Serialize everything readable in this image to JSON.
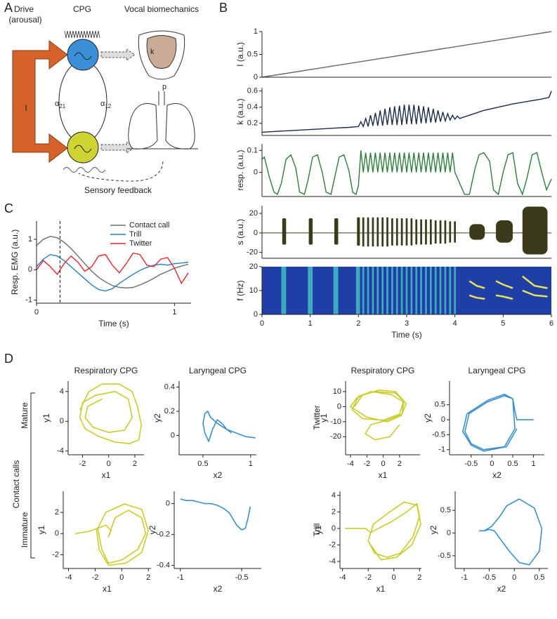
{
  "panels": {
    "a": "A",
    "b": "B",
    "c": "C",
    "d": "D"
  },
  "diagram": {
    "drive": "Drive",
    "arousal": "(arousal)",
    "cpg": "CPG",
    "biomechanics": "Vocal biomechanics",
    "drive_symbol": "I",
    "alpha_left": {
      "symbol": "α",
      "subscript": "21"
    },
    "alpha_right": {
      "symbol": "α",
      "subscript": "12"
    },
    "k": "k",
    "p": "p",
    "feedback": "Sensory feedback"
  },
  "row_labels": {
    "group": "Contact calls",
    "mature": "Mature",
    "immature": "Immature",
    "twitter": "Twitter",
    "trill": "Trill"
  },
  "chart_data": [
    {
      "type": "line",
      "ylabel": "I (a.u.)",
      "x": [
        0,
        6
      ],
      "values": [
        0,
        1
      ],
      "color": "#666666",
      "xlim": [
        0,
        6
      ],
      "ylim": [
        0,
        1
      ],
      "yticks": [
        0,
        0.5,
        1
      ]
    },
    {
      "type": "line",
      "ylabel": "k (a.u.)",
      "color": "#1c2b4a",
      "xlim": [
        0,
        6
      ],
      "ylim": [
        0.05,
        0.64
      ],
      "yticks": [
        0.2,
        0.4,
        0.6
      ],
      "x": [
        0,
        0.3,
        0.6,
        0.9,
        1.2,
        1.5,
        1.8,
        2.0,
        2.05,
        2.1,
        2.15,
        2.2,
        2.25,
        2.3,
        2.35,
        2.4,
        2.45,
        2.5,
        2.55,
        2.6,
        2.65,
        2.7,
        2.75,
        2.8,
        2.85,
        2.9,
        2.95,
        3.0,
        3.05,
        3.1,
        3.15,
        3.2,
        3.25,
        3.3,
        3.35,
        3.4,
        3.45,
        3.5,
        3.55,
        3.6,
        3.65,
        3.7,
        3.75,
        3.8,
        3.85,
        3.9,
        3.95,
        4.0,
        4.05,
        4.1,
        4.3,
        4.6,
        4.9,
        5.2,
        5.5,
        5.8,
        5.95,
        6
      ],
      "values": [
        0.09,
        0.1,
        0.11,
        0.12,
        0.13,
        0.14,
        0.15,
        0.16,
        0.22,
        0.16,
        0.26,
        0.16,
        0.3,
        0.17,
        0.33,
        0.17,
        0.36,
        0.17,
        0.38,
        0.18,
        0.4,
        0.18,
        0.41,
        0.18,
        0.42,
        0.18,
        0.43,
        0.19,
        0.43,
        0.19,
        0.43,
        0.19,
        0.42,
        0.2,
        0.41,
        0.2,
        0.4,
        0.21,
        0.38,
        0.21,
        0.36,
        0.22,
        0.34,
        0.23,
        0.32,
        0.24,
        0.3,
        0.25,
        0.29,
        0.26,
        0.3,
        0.36,
        0.4,
        0.44,
        0.47,
        0.5,
        0.52,
        0.6
      ]
    },
    {
      "type": "line",
      "ylabel": "resp. (a.u.)",
      "color": "#2e7d3a",
      "xlim": [
        0,
        6
      ],
      "ylim": [
        -0.11,
        0.13
      ],
      "yticks": [
        0,
        0.1
      ],
      "x": [
        0,
        0.05,
        0.15,
        0.25,
        0.32,
        0.4,
        0.5,
        0.6,
        0.7,
        0.78,
        0.88,
        0.95,
        1.05,
        1.15,
        1.25,
        1.33,
        1.43,
        1.5,
        1.6,
        1.7,
        1.8,
        1.88,
        1.95,
        2.0,
        2.05,
        2.1,
        2.15,
        2.2,
        2.25,
        2.3,
        2.35,
        2.4,
        2.45,
        2.5,
        2.55,
        2.6,
        2.65,
        2.7,
        2.75,
        2.8,
        2.85,
        2.9,
        2.95,
        3.0,
        3.05,
        3.1,
        3.15,
        3.2,
        3.25,
        3.3,
        3.35,
        3.4,
        3.45,
        3.5,
        3.55,
        3.6,
        3.65,
        3.7,
        3.75,
        3.8,
        3.85,
        3.9,
        3.95,
        4.0,
        4.1,
        4.2,
        4.3,
        4.42,
        4.5,
        4.6,
        4.72,
        4.8,
        4.9,
        5.0,
        5.1,
        5.2,
        5.3,
        5.4,
        5.5,
        5.6,
        5.7,
        5.8,
        5.9,
        6.0
      ],
      "values": [
        0.06,
        0.07,
        -0.02,
        -0.09,
        -0.1,
        -0.05,
        0.06,
        0.08,
        0.02,
        -0.09,
        -0.1,
        -0.04,
        0.07,
        0.08,
        0.0,
        -0.09,
        -0.1,
        -0.03,
        0.07,
        0.08,
        0.01,
        -0.09,
        -0.1,
        -0.06,
        0.1,
        0,
        0.09,
        0,
        0.09,
        0,
        0.09,
        0,
        0.09,
        0,
        0.09,
        0,
        0.09,
        0,
        0.09,
        0,
        0.09,
        0,
        0.09,
        0,
        0.09,
        0,
        0.09,
        0,
        0.09,
        0,
        0.09,
        0,
        0.09,
        0,
        0.09,
        0,
        0.09,
        0,
        0.09,
        0,
        0.09,
        0,
        0.09,
        0,
        -0.05,
        -0.1,
        -0.1,
        0.02,
        0.08,
        0.09,
        0.05,
        -0.08,
        -0.1,
        0.0,
        0.08,
        0.09,
        -0.05,
        -0.1,
        -0.02,
        0.08,
        0.09,
        0.0,
        -0.08,
        -0.03
      ]
    },
    {
      "type": "bursts",
      "ylabel": "s (a.u.)",
      "color": "#3b3b1c",
      "xlim": [
        0,
        6
      ],
      "ylim": [
        -26,
        28
      ],
      "yticks": [
        -20,
        0,
        20
      ],
      "starts": [
        0.42,
        0.97,
        1.5,
        1.97,
        2.08,
        2.18,
        2.28,
        2.38,
        2.48,
        2.58,
        2.68,
        2.78,
        2.88,
        2.98,
        3.08,
        3.18,
        3.28,
        3.38,
        3.48,
        3.58,
        3.68,
        3.78,
        3.88,
        3.98,
        4.3,
        4.85,
        5.4
      ],
      "ends": [
        0.5,
        1.05,
        1.58,
        2.03,
        2.12,
        2.22,
        2.32,
        2.42,
        2.52,
        2.62,
        2.72,
        2.82,
        2.92,
        3.02,
        3.12,
        3.22,
        3.32,
        3.42,
        3.52,
        3.62,
        3.72,
        3.82,
        3.92,
        4.02,
        4.62,
        5.2,
        5.92
      ],
      "upper": [
        15,
        15,
        15,
        16,
        16,
        16,
        16,
        16,
        16,
        16,
        15,
        15,
        15,
        15,
        15,
        14,
        14,
        14,
        14,
        13,
        13,
        13,
        12,
        12,
        9,
        13,
        27
      ],
      "lower": [
        -12,
        -12,
        -12,
        -13,
        -14,
        -14,
        -14,
        -14,
        -14,
        -14,
        -13,
        -13,
        -13,
        -13,
        -13,
        -12,
        -12,
        -12,
        -12,
        -11,
        -11,
        -11,
        -10,
        -10,
        -7,
        -10,
        -22
      ]
    },
    {
      "type": "spectrogram",
      "ylabel": "f (Hz)",
      "xlabel": "Time (s)",
      "xlim": [
        0,
        6
      ],
      "ylim": [
        0,
        20
      ],
      "yticks": [
        0,
        10,
        20
      ],
      "xticks": [
        0,
        1,
        2,
        3,
        4,
        5,
        6
      ],
      "background_color": "#1f3fa6",
      "stripe_color": "#45bcc4",
      "tone_color": "#e8e25a",
      "stripe_starts": [
        0.4,
        0.95,
        1.48,
        1.95,
        2.08,
        2.18,
        2.28,
        2.38,
        2.48,
        2.58,
        2.68,
        2.78,
        2.88,
        2.98,
        3.08,
        3.18,
        3.28,
        3.38,
        3.48,
        3.58,
        3.68,
        3.78,
        3.88,
        3.98
      ],
      "stripe_ends": [
        0.5,
        1.05,
        1.58,
        2.03,
        2.12,
        2.22,
        2.32,
        2.42,
        2.52,
        2.62,
        2.72,
        2.82,
        2.92,
        3.02,
        3.12,
        3.22,
        3.32,
        3.42,
        3.52,
        3.62,
        3.72,
        3.82,
        3.92,
        4.02
      ],
      "tones": [
        {
          "x": [
            4.3,
            4.45,
            4.62
          ],
          "values": [
            14,
            12,
            11
          ]
        },
        {
          "x": [
            4.3,
            4.45,
            4.62
          ],
          "values": [
            8,
            7,
            6.5
          ]
        },
        {
          "x": [
            4.85,
            5.0,
            5.2
          ],
          "values": [
            14,
            12.5,
            11
          ]
        },
        {
          "x": [
            4.85,
            5.0,
            5.2
          ],
          "values": [
            8,
            7.5,
            6.5
          ]
        },
        {
          "x": [
            5.4,
            5.65,
            5.92
          ],
          "values": [
            16,
            12,
            11
          ]
        },
        {
          "x": [
            5.4,
            5.65,
            5.92
          ],
          "values": [
            10,
            8,
            7.5
          ]
        }
      ]
    },
    {
      "type": "line",
      "ylabel": "Resp. EMG (a.u.)",
      "xlabel": "Time (s)",
      "xlim": [
        0,
        1.12
      ],
      "ylim": [
        -1.1,
        1.6
      ],
      "xticks": [
        0,
        1
      ],
      "yticks": [
        -1,
        0,
        1
      ],
      "legend": "top-right",
      "vline": 0.17,
      "x": [
        0,
        0.05,
        0.1,
        0.15,
        0.2,
        0.25,
        0.3,
        0.35,
        0.4,
        0.45,
        0.5,
        0.55,
        0.6,
        0.65,
        0.7,
        0.75,
        0.8,
        0.85,
        0.9,
        0.95,
        1.0,
        1.05,
        1.1
      ],
      "series": [
        {
          "name": "Contact call",
          "color": "#6e6e6e",
          "values": [
            0.8,
            1.0,
            1.1,
            1.05,
            0.9,
            0.7,
            0.45,
            0.2,
            -0.05,
            -0.25,
            -0.4,
            -0.52,
            -0.58,
            -0.6,
            -0.58,
            -0.5,
            -0.4,
            -0.28,
            -0.15,
            -0.05,
            0.05,
            0.12,
            0.18
          ]
        },
        {
          "name": "Trill",
          "color": "#2a7fc0",
          "values": [
            0.1,
            0.35,
            0.5,
            0.45,
            0.3,
            0.1,
            -0.1,
            -0.3,
            -0.5,
            -0.65,
            -0.7,
            -0.62,
            -0.45,
            -0.3,
            -0.15,
            -0.02,
            0.08,
            0.15,
            0.18,
            0.15,
            0.2,
            0.22,
            0.25
          ]
        },
        {
          "name": "Twitter",
          "color": "#e3262d",
          "values": [
            0.0,
            0.3,
            0.1,
            -0.15,
            0.2,
            0.45,
            0.25,
            -0.05,
            0.1,
            0.45,
            0.5,
            0.15,
            -0.1,
            0.2,
            0.55,
            0.5,
            0.15,
            0.1,
            0.35,
            0.4,
            0.05,
            -0.45,
            -0.1
          ]
        }
      ]
    },
    {
      "type": "trajectory",
      "title": "Respiratory CPG",
      "xlabel": "x1",
      "ylabel": "y1",
      "color": "#c9cc2c",
      "xlim": [
        -3.1,
        2.7
      ],
      "ylim": [
        -4.5,
        5.4
      ],
      "xticks": [
        -2,
        0,
        2
      ],
      "yticks": [
        -4,
        0,
        4
      ],
      "x": [
        -2.2,
        -1.8,
        -1.5,
        -0.5,
        0.8,
        1.8,
        2.2,
        2.5,
        2.3,
        1.6,
        0.5,
        -0.8,
        -1.8,
        -2.2,
        -2.0,
        -1.0,
        0.5,
        1.5,
        1.8,
        1.2,
        0,
        -1.2,
        -1.8,
        -1.6,
        -0.5
      ],
      "y": [
        1.5,
        3,
        4,
        5,
        5,
        4,
        2,
        -0.5,
        -2.5,
        -3,
        -2.8,
        -2,
        -1,
        0.5,
        2.5,
        3.5,
        4,
        3,
        0.5,
        -1.2,
        -1.5,
        -0.8,
        0.5,
        2,
        3
      ]
    },
    {
      "type": "trajectory",
      "title": "Laryngeal CPG",
      "xlabel": "x2",
      "ylabel": "y2",
      "color": "#3a8fcc",
      "xlim": [
        0.25,
        1.06
      ],
      "ylim": [
        -0.16,
        0.45
      ],
      "xticks": [
        0.5,
        1
      ],
      "yticks": [
        0,
        0.2,
        0.4
      ],
      "x": [
        1.05,
        0.95,
        0.85,
        0.75,
        0.65,
        0.58,
        0.55,
        0.52,
        0.5,
        0.52,
        0.56,
        0.6,
        0.65,
        0.7,
        0.75,
        0.8
      ],
      "y": [
        -0.02,
        -0.01,
        0.02,
        0.05,
        0.1,
        0.15,
        0.2,
        0.18,
        0.1,
        0.02,
        -0.05,
        0.05,
        0.13,
        0.1,
        0.05,
        0.02
      ]
    },
    {
      "type": "trajectory",
      "title": "Respiratory CPG",
      "xlabel": "x1",
      "ylabel": "y1",
      "color": "#c9cc2c",
      "xlim": [
        -4.6,
        4.5
      ],
      "ylim": [
        -32,
        17
      ],
      "xticks": [
        -4,
        -2,
        0,
        2
      ],
      "yticks": [
        -20,
        -10,
        0,
        10
      ],
      "x": [
        -3.5,
        -2.5,
        -0.5,
        1.5,
        2.5,
        2,
        0,
        -2.5,
        -3.8,
        -3,
        -1,
        1.5,
        2.8,
        2.2,
        0.5,
        -2,
        -4,
        -3.2,
        -1.5,
        1,
        2.5,
        2.3,
        0.5,
        -1.5,
        -2.2,
        -1,
        0.8,
        2
      ],
      "y": [
        0,
        8,
        11,
        10,
        4,
        -5,
        -9,
        -8,
        -2,
        7,
        10,
        9,
        2,
        -6,
        -10,
        -7,
        0,
        6,
        10,
        8,
        3,
        -5,
        -9,
        -12,
        -18,
        -22,
        -20,
        -12
      ]
    },
    {
      "type": "trajectory",
      "title": "Laryngeal CPG",
      "xlabel": "x2",
      "ylabel": "y2",
      "color": "#3a8fcc",
      "xlim": [
        -1.02,
        1.26
      ],
      "ylim": [
        -1.17,
        1.29
      ],
      "xticks": [
        -0.5,
        0,
        0.5,
        1
      ],
      "yticks": [
        -1,
        -0.5,
        0,
        0.5
      ],
      "x": [
        1.0,
        0.8,
        0.6,
        0.55,
        0.5,
        0.3,
        -0.1,
        -0.55,
        -0.65,
        -0.5,
        -0.2,
        0.3,
        0.55,
        0.5,
        0.3,
        -0.1,
        -0.6,
        -0.7,
        -0.5,
        -0.2,
        0.35,
        0.6
      ],
      "y": [
        0.0,
        0.0,
        0.0,
        0.3,
        0.7,
        0.8,
        0.6,
        0.2,
        -0.4,
        -0.8,
        -1.0,
        -0.9,
        -0.3,
        0.7,
        0.85,
        0.65,
        0.2,
        -0.4,
        -0.85,
        -1.05,
        -0.9,
        -0.3
      ]
    },
    {
      "type": "trajectory",
      "xlabel": "x1",
      "ylabel": "y1",
      "color": "#c9cc2c",
      "xlim": [
        -4.4,
        2.2
      ],
      "ylim": [
        -3.3,
        4.0
      ],
      "xticks": [
        -4,
        -2,
        0,
        2
      ],
      "yticks": [
        -2,
        0,
        2
      ],
      "x": [
        -3.5,
        -2.5,
        -1.8,
        -1.2,
        -0.8,
        -1,
        -0.5,
        0.5,
        1.5,
        1.8,
        1.2,
        0,
        -1,
        -1.5,
        -1.8,
        -1.2,
        0.2,
        1.5,
        2,
        1.5,
        0.3,
        -1,
        -1.7,
        -1.9
      ],
      "y": [
        0,
        0.2,
        0.5,
        0.8,
        0.3,
        -0.3,
        1.5,
        2.2,
        1.5,
        0,
        -1.5,
        -2.5,
        -2.8,
        -1.5,
        0.5,
        2,
        2.8,
        2.3,
        0.3,
        -1.8,
        -2.8,
        -3,
        -1.5,
        0.5
      ]
    },
    {
      "type": "trajectory",
      "xlabel": "x2",
      "ylabel": "y2",
      "color": "#3a8fcc",
      "xlim": [
        -1.05,
        -0.34
      ],
      "ylim": [
        -0.42,
        0.08
      ],
      "xticks": [
        -1,
        -0.5
      ],
      "yticks": [
        -0.4,
        -0.2,
        0
      ],
      "x": [
        -1.0,
        -0.95,
        -0.9,
        -0.85,
        -0.8,
        -0.75,
        -0.7,
        -0.65,
        -0.6,
        -0.57,
        -0.54,
        -0.5,
        -0.47,
        -0.45,
        -0.43
      ],
      "y": [
        0.03,
        0.02,
        0.02,
        0.01,
        0.0,
        0.0,
        -0.01,
        -0.03,
        -0.06,
        -0.1,
        -0.14,
        -0.17,
        -0.16,
        -0.1,
        -0.02
      ]
    },
    {
      "type": "trajectory",
      "xlabel": "x1",
      "ylabel": "y1",
      "color": "#c9cc2c",
      "xlim": [
        -4.2,
        2.15
      ],
      "ylim": [
        -4.85,
        4.5
      ],
      "xticks": [
        -4,
        -2,
        0,
        2
      ],
      "yticks": [
        -4,
        -2,
        0,
        2,
        4
      ],
      "x": [
        -3.8,
        -3.2,
        -2.6,
        -2.2,
        -1.8,
        -1.2,
        -0.2,
        1,
        1.8,
        2,
        1.5,
        0.5,
        -0.5,
        -1.5,
        -2,
        -1.6,
        -0.5,
        0.8,
        1.8,
        2.1,
        1.4,
        0.2,
        -1,
        -1.8
      ],
      "y": [
        0,
        0,
        0,
        0,
        -0.5,
        0,
        0.8,
        2,
        3,
        1.5,
        -1,
        -3,
        -3.5,
        -3,
        -1.5,
        0.5,
        1.8,
        3.2,
        2.8,
        0.5,
        -2,
        -3.5,
        -3.8,
        -2
      ]
    },
    {
      "type": "trajectory",
      "xlabel": "x2",
      "ylabel": "y2",
      "color": "#3a8fcc",
      "xlim": [
        -1.18,
        0.67
      ],
      "ylim": [
        -0.78,
        0.92
      ],
      "xticks": [
        -1,
        -0.5,
        0,
        0.5
      ],
      "yticks": [
        -0.5,
        0,
        0.5
      ],
      "x": [
        -0.7,
        -0.6,
        -0.5,
        -0.4,
        -0.3,
        -0.1,
        0.1,
        0.3,
        0.5,
        0.55,
        0.4,
        0.1,
        -0.15,
        -0.3,
        -0.45,
        -0.6
      ],
      "y": [
        0.05,
        0.05,
        0.08,
        0.05,
        -0.1,
        -0.4,
        -0.65,
        -0.7,
        -0.4,
        0.1,
        0.55,
        0.75,
        0.6,
        0.35,
        0.15,
        0.05
      ]
    }
  ]
}
